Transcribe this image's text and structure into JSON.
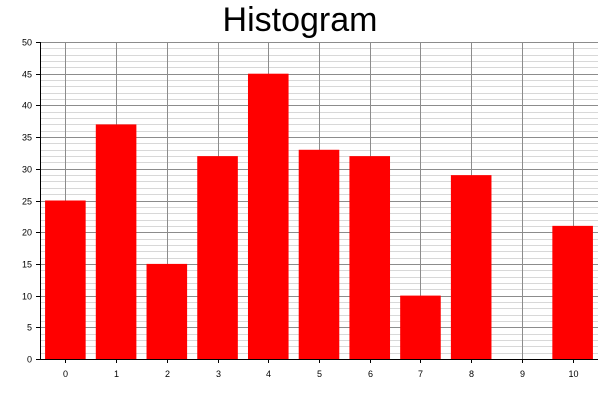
{
  "chart_data": {
    "type": "bar",
    "title": "Histogram",
    "xlabel": "",
    "ylabel": "",
    "categories": [
      "0",
      "1",
      "2",
      "3",
      "4",
      "5",
      "6",
      "7",
      "8",
      "9",
      "10"
    ],
    "values": [
      25,
      37,
      15,
      32,
      45,
      33,
      32,
      10,
      29,
      0,
      21
    ],
    "ylim": [
      0,
      50
    ],
    "y_major_step": 5,
    "y_minor_step": 1,
    "grid": true,
    "legend": "none",
    "colors": {
      "bar": "#ff0000",
      "major_grid": "#8c8c8c",
      "minor_grid": "#d8d8d8",
      "axis": "#000000"
    }
  }
}
